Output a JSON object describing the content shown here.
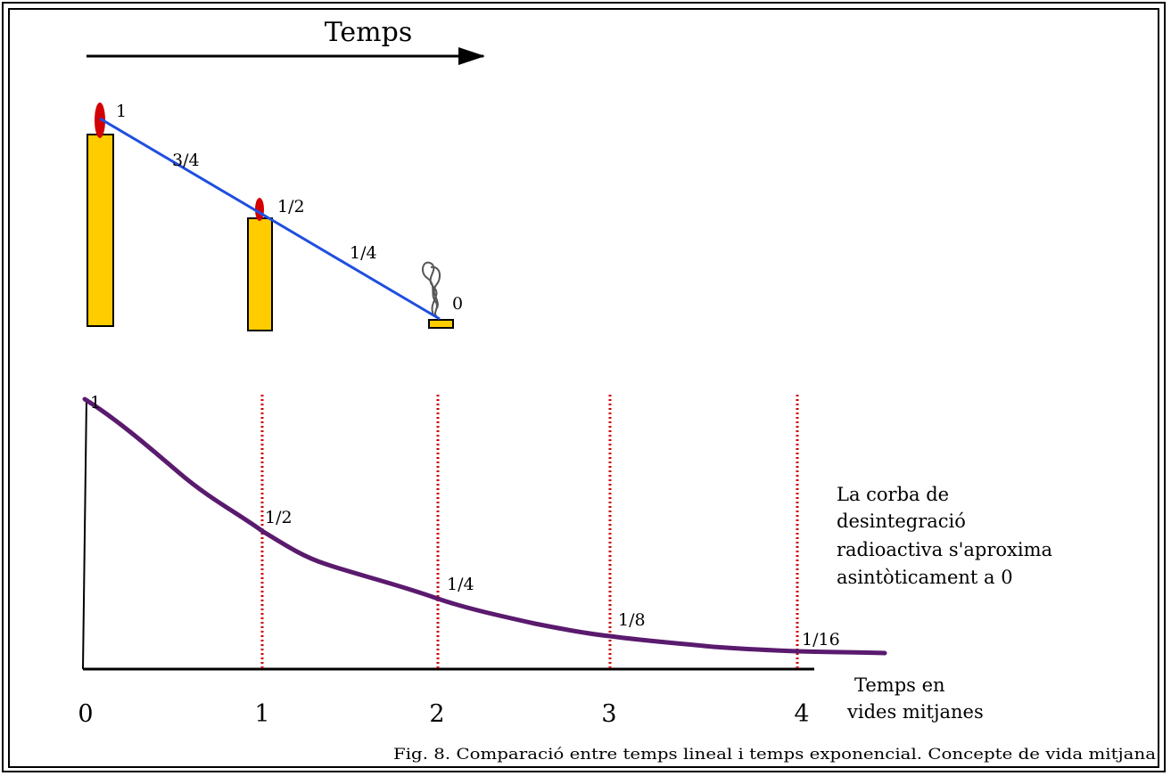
{
  "header": {
    "time_label": "Temps"
  },
  "candles": {
    "fractions": [
      "1",
      "3/4",
      "1/2",
      "1/4",
      "0"
    ]
  },
  "decay": {
    "start_label": "1",
    "fraction_labels": [
      "1/2",
      "1/4",
      "1/8",
      "1/16"
    ],
    "x_ticks": [
      "0",
      "1",
      "2",
      "3",
      "4"
    ],
    "x_axis_title": [
      "Temps en",
      "vides mitjanes"
    ],
    "note": [
      "La corba de",
      "desintegració",
      "radioactiva s'aproxima",
      "asintòticament a 0"
    ]
  },
  "caption": "Fig. 8. Comparació entre temps lineal i temps exponencial. Concepte de vida mitjana",
  "colors": {
    "candle_body": "#FFCC00",
    "flame": "#D40000",
    "linear_line": "#1F4FE0",
    "decay_curve": "#5A1A6E",
    "dotted_lines": "#CC0000",
    "smoke": "#555555"
  }
}
